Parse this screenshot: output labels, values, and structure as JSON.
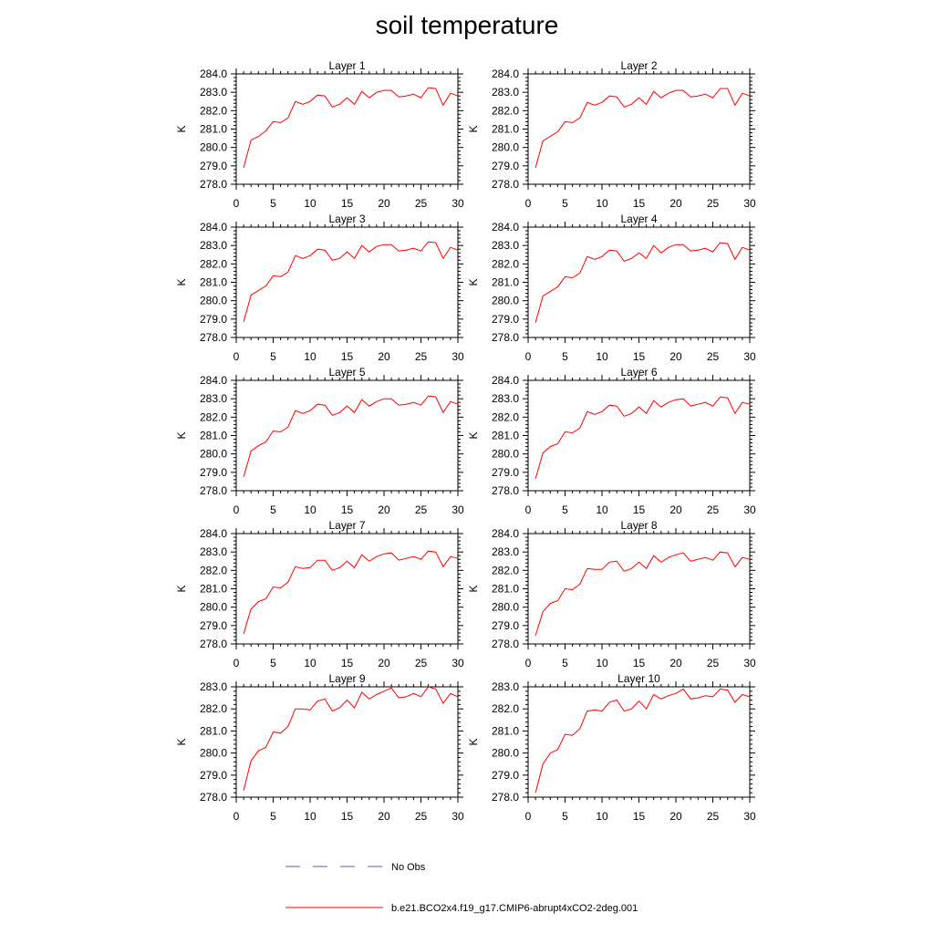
{
  "title": "soil temperature",
  "legend": [
    {
      "label": "No Obs",
      "color": "#5a5acd",
      "style": "dashed"
    },
    {
      "label": "b.e21.BCO2x4.f19_g17.CMIP6-abrupt4xCO2-2deg.001",
      "color": "#ff0000",
      "style": "solid"
    }
  ],
  "chart_data": [
    {
      "type": "line",
      "title": "Layer 1",
      "ylabel": "K",
      "xlabel": "",
      "xlim": [
        0,
        30
      ],
      "ylim": [
        278.0,
        284.0
      ],
      "xticks": [
        0,
        5,
        10,
        15,
        20,
        25,
        30
      ],
      "yticks": [
        278.0,
        279.0,
        280.0,
        281.0,
        282.0,
        283.0,
        284.0
      ],
      "x": [
        1,
        2,
        3,
        4,
        5,
        6,
        7,
        8,
        9,
        10,
        11,
        12,
        13,
        14,
        15,
        16,
        17,
        18,
        19,
        20,
        21,
        22,
        23,
        24,
        25,
        26,
        27,
        28,
        29,
        30
      ],
      "series": [
        {
          "name": "b.e21.BCO2x4.f19_g17.CMIP6-abrupt4xCO2-2deg.001",
          "color": "#ff0000",
          "values": [
            278.9,
            280.4,
            280.6,
            280.9,
            281.4,
            281.35,
            281.6,
            282.5,
            282.35,
            282.5,
            282.85,
            282.8,
            282.2,
            282.35,
            282.7,
            282.35,
            283.05,
            282.7,
            283.0,
            283.1,
            283.1,
            282.75,
            282.8,
            282.9,
            282.7,
            283.25,
            283.2,
            282.3,
            282.95,
            282.8
          ]
        }
      ]
    },
    {
      "type": "line",
      "title": "Layer 2",
      "ylabel": "K",
      "xlabel": "",
      "xlim": [
        0,
        30
      ],
      "ylim": [
        278.0,
        284.0
      ],
      "xticks": [
        0,
        5,
        10,
        15,
        20,
        25,
        30
      ],
      "yticks": [
        278.0,
        279.0,
        280.0,
        281.0,
        282.0,
        283.0,
        284.0
      ],
      "x": [
        1,
        2,
        3,
        4,
        5,
        6,
        7,
        8,
        9,
        10,
        11,
        12,
        13,
        14,
        15,
        16,
        17,
        18,
        19,
        20,
        21,
        22,
        23,
        24,
        25,
        26,
        27,
        28,
        29,
        30
      ],
      "series": [
        {
          "name": "b.e21.BCO2x4.f19_g17.CMIP6-abrupt4xCO2-2deg.001",
          "color": "#ff0000",
          "values": [
            278.9,
            280.35,
            280.6,
            280.85,
            281.4,
            281.35,
            281.6,
            282.45,
            282.3,
            282.45,
            282.8,
            282.75,
            282.2,
            282.35,
            282.7,
            282.35,
            283.05,
            282.7,
            282.95,
            283.1,
            283.1,
            282.75,
            282.8,
            282.9,
            282.7,
            283.2,
            283.2,
            282.3,
            282.95,
            282.8
          ]
        }
      ]
    },
    {
      "type": "line",
      "title": "Layer 3",
      "ylabel": "K",
      "xlabel": "",
      "xlim": [
        0,
        30
      ],
      "ylim": [
        278.0,
        284.0
      ],
      "xticks": [
        0,
        5,
        10,
        15,
        20,
        25,
        30
      ],
      "yticks": [
        278.0,
        279.0,
        280.0,
        281.0,
        282.0,
        283.0,
        284.0
      ],
      "x": [
        1,
        2,
        3,
        4,
        5,
        6,
        7,
        8,
        9,
        10,
        11,
        12,
        13,
        14,
        15,
        16,
        17,
        18,
        19,
        20,
        21,
        22,
        23,
        24,
        25,
        26,
        27,
        28,
        29,
        30
      ],
      "series": [
        {
          "name": "b.e21.BCO2x4.f19_g17.CMIP6-abrupt4xCO2-2deg.001",
          "color": "#ff0000",
          "values": [
            278.85,
            280.3,
            280.55,
            280.8,
            281.35,
            281.3,
            281.55,
            282.45,
            282.3,
            282.45,
            282.8,
            282.75,
            282.2,
            282.3,
            282.65,
            282.3,
            283.0,
            282.65,
            282.95,
            283.05,
            283.05,
            282.7,
            282.75,
            282.85,
            282.7,
            283.2,
            283.15,
            282.3,
            282.9,
            282.75
          ]
        }
      ]
    },
    {
      "type": "line",
      "title": "Layer 4",
      "ylabel": "K",
      "xlabel": "",
      "xlim": [
        0,
        30
      ],
      "ylim": [
        278.0,
        284.0
      ],
      "xticks": [
        0,
        5,
        10,
        15,
        20,
        25,
        30
      ],
      "yticks": [
        278.0,
        279.0,
        280.0,
        281.0,
        282.0,
        283.0,
        284.0
      ],
      "x": [
        1,
        2,
        3,
        4,
        5,
        6,
        7,
        8,
        9,
        10,
        11,
        12,
        13,
        14,
        15,
        16,
        17,
        18,
        19,
        20,
        21,
        22,
        23,
        24,
        25,
        26,
        27,
        28,
        29,
        30
      ],
      "series": [
        {
          "name": "b.e21.BCO2x4.f19_g17.CMIP6-abrupt4xCO2-2deg.001",
          "color": "#ff0000",
          "values": [
            278.8,
            280.25,
            280.5,
            280.75,
            281.3,
            281.25,
            281.5,
            282.4,
            282.25,
            282.4,
            282.75,
            282.7,
            282.15,
            282.3,
            282.6,
            282.3,
            283.0,
            282.6,
            282.9,
            283.05,
            283.05,
            282.7,
            282.75,
            282.85,
            282.65,
            283.15,
            283.1,
            282.25,
            282.9,
            282.75
          ]
        }
      ]
    },
    {
      "type": "line",
      "title": "Layer 5",
      "ylabel": "K",
      "xlabel": "",
      "xlim": [
        0,
        30
      ],
      "ylim": [
        278.0,
        284.0
      ],
      "xticks": [
        0,
        5,
        10,
        15,
        20,
        25,
        30
      ],
      "yticks": [
        278.0,
        279.0,
        280.0,
        281.0,
        282.0,
        283.0,
        284.0
      ],
      "x": [
        1,
        2,
        3,
        4,
        5,
        6,
        7,
        8,
        9,
        10,
        11,
        12,
        13,
        14,
        15,
        16,
        17,
        18,
        19,
        20,
        21,
        22,
        23,
        24,
        25,
        26,
        27,
        28,
        29,
        30
      ],
      "series": [
        {
          "name": "b.e21.BCO2x4.f19_g17.CMIP6-abrupt4xCO2-2deg.001",
          "color": "#ff0000",
          "values": [
            278.75,
            280.15,
            280.45,
            280.65,
            281.25,
            281.2,
            281.45,
            282.35,
            282.2,
            282.35,
            282.7,
            282.65,
            282.1,
            282.25,
            282.6,
            282.25,
            282.95,
            282.6,
            282.85,
            283.0,
            283.0,
            282.65,
            282.7,
            282.8,
            282.65,
            283.15,
            283.1,
            282.25,
            282.85,
            282.7
          ]
        }
      ]
    },
    {
      "type": "line",
      "title": "Layer 6",
      "ylabel": "K",
      "xlabel": "",
      "xlim": [
        0,
        30
      ],
      "ylim": [
        278.0,
        284.0
      ],
      "xticks": [
        0,
        5,
        10,
        15,
        20,
        25,
        30
      ],
      "yticks": [
        278.0,
        279.0,
        280.0,
        281.0,
        282.0,
        283.0,
        284.0
      ],
      "x": [
        1,
        2,
        3,
        4,
        5,
        6,
        7,
        8,
        9,
        10,
        11,
        12,
        13,
        14,
        15,
        16,
        17,
        18,
        19,
        20,
        21,
        22,
        23,
        24,
        25,
        26,
        27,
        28,
        29,
        30
      ],
      "series": [
        {
          "name": "b.e21.BCO2x4.f19_g17.CMIP6-abrupt4xCO2-2deg.001",
          "color": "#ff0000",
          "values": [
            278.65,
            280.05,
            280.4,
            280.55,
            281.2,
            281.15,
            281.4,
            282.3,
            282.15,
            282.3,
            282.65,
            282.6,
            282.05,
            282.2,
            282.55,
            282.2,
            282.9,
            282.55,
            282.8,
            282.95,
            283.0,
            282.6,
            282.7,
            282.8,
            282.6,
            283.1,
            283.05,
            282.2,
            282.8,
            282.7
          ]
        }
      ]
    },
    {
      "type": "line",
      "title": "Layer 7",
      "ylabel": "K",
      "xlabel": "",
      "xlim": [
        0,
        30
      ],
      "ylim": [
        278.0,
        284.0
      ],
      "xticks": [
        0,
        5,
        10,
        15,
        20,
        25,
        30
      ],
      "yticks": [
        278.0,
        279.0,
        280.0,
        281.0,
        282.0,
        283.0,
        284.0
      ],
      "x": [
        1,
        2,
        3,
        4,
        5,
        6,
        7,
        8,
        9,
        10,
        11,
        12,
        13,
        14,
        15,
        16,
        17,
        18,
        19,
        20,
        21,
        22,
        23,
        24,
        25,
        26,
        27,
        28,
        29,
        30
      ],
      "series": [
        {
          "name": "b.e21.BCO2x4.f19_g17.CMIP6-abrupt4xCO2-2deg.001",
          "color": "#ff0000",
          "values": [
            278.55,
            279.9,
            280.3,
            280.45,
            281.1,
            281.05,
            281.35,
            282.2,
            282.1,
            282.15,
            282.55,
            282.55,
            282.0,
            282.15,
            282.5,
            282.15,
            282.85,
            282.5,
            282.75,
            282.9,
            282.95,
            282.55,
            282.65,
            282.75,
            282.6,
            283.05,
            283.0,
            282.2,
            282.75,
            282.65
          ]
        }
      ]
    },
    {
      "type": "line",
      "title": "Layer 8",
      "ylabel": "K",
      "xlabel": "",
      "xlim": [
        0,
        30
      ],
      "ylim": [
        278.0,
        284.0
      ],
      "xticks": [
        0,
        5,
        10,
        15,
        20,
        25,
        30
      ],
      "yticks": [
        278.0,
        279.0,
        280.0,
        281.0,
        282.0,
        283.0,
        284.0
      ],
      "x": [
        1,
        2,
        3,
        4,
        5,
        6,
        7,
        8,
        9,
        10,
        11,
        12,
        13,
        14,
        15,
        16,
        17,
        18,
        19,
        20,
        21,
        22,
        23,
        24,
        25,
        26,
        27,
        28,
        29,
        30
      ],
      "series": [
        {
          "name": "b.e21.BCO2x4.f19_g17.CMIP6-abrupt4xCO2-2deg.001",
          "color": "#ff0000",
          "values": [
            278.45,
            279.75,
            280.2,
            280.35,
            281.0,
            280.95,
            281.25,
            282.1,
            282.05,
            282.05,
            282.45,
            282.5,
            281.95,
            282.1,
            282.45,
            282.1,
            282.8,
            282.45,
            282.7,
            282.85,
            282.95,
            282.5,
            282.6,
            282.7,
            282.55,
            283.0,
            282.95,
            282.2,
            282.7,
            282.6
          ]
        }
      ]
    },
    {
      "type": "line",
      "title": "Layer 9",
      "ylabel": "K",
      "xlabel": "",
      "xlim": [
        0,
        30
      ],
      "ylim": [
        278.0,
        283.0
      ],
      "xticks": [
        0,
        5,
        10,
        15,
        20,
        25,
        30
      ],
      "yticks": [
        278.0,
        279.0,
        280.0,
        281.0,
        282.0,
        283.0
      ],
      "x": [
        1,
        2,
        3,
        4,
        5,
        6,
        7,
        8,
        9,
        10,
        11,
        12,
        13,
        14,
        15,
        16,
        17,
        18,
        19,
        20,
        21,
        22,
        23,
        24,
        25,
        26,
        27,
        28,
        29,
        30
      ],
      "series": [
        {
          "name": "b.e21.BCO2x4.f19_g17.CMIP6-abrupt4xCO2-2deg.001",
          "color": "#ff0000",
          "values": [
            278.3,
            279.65,
            280.1,
            280.25,
            280.95,
            280.9,
            281.2,
            282.0,
            282.0,
            281.95,
            282.35,
            282.45,
            281.9,
            282.05,
            282.4,
            282.05,
            282.75,
            282.45,
            282.65,
            282.8,
            282.95,
            282.5,
            282.55,
            282.7,
            282.55,
            283.0,
            282.9,
            282.25,
            282.7,
            282.55
          ]
        }
      ]
    },
    {
      "type": "line",
      "title": "Layer 10",
      "ylabel": "K",
      "xlabel": "",
      "xlim": [
        0,
        30
      ],
      "ylim": [
        278.0,
        283.0
      ],
      "xticks": [
        0,
        5,
        10,
        15,
        20,
        25,
        30
      ],
      "yticks": [
        278.0,
        279.0,
        280.0,
        281.0,
        282.0,
        283.0
      ],
      "x": [
        1,
        2,
        3,
        4,
        5,
        6,
        7,
        8,
        9,
        10,
        11,
        12,
        13,
        14,
        15,
        16,
        17,
        18,
        19,
        20,
        21,
        22,
        23,
        24,
        25,
        26,
        27,
        28,
        29,
        30
      ],
      "series": [
        {
          "name": "b.e21.BCO2x4.f19_g17.CMIP6-abrupt4xCO2-2deg.001",
          "color": "#ff0000",
          "values": [
            278.2,
            279.5,
            280.0,
            280.15,
            280.85,
            280.8,
            281.1,
            281.9,
            281.95,
            281.9,
            282.3,
            282.4,
            281.9,
            282.0,
            282.35,
            282.0,
            282.65,
            282.45,
            282.6,
            282.7,
            282.9,
            282.45,
            282.5,
            282.6,
            282.55,
            282.9,
            282.85,
            282.3,
            282.65,
            282.55
          ]
        }
      ]
    }
  ]
}
